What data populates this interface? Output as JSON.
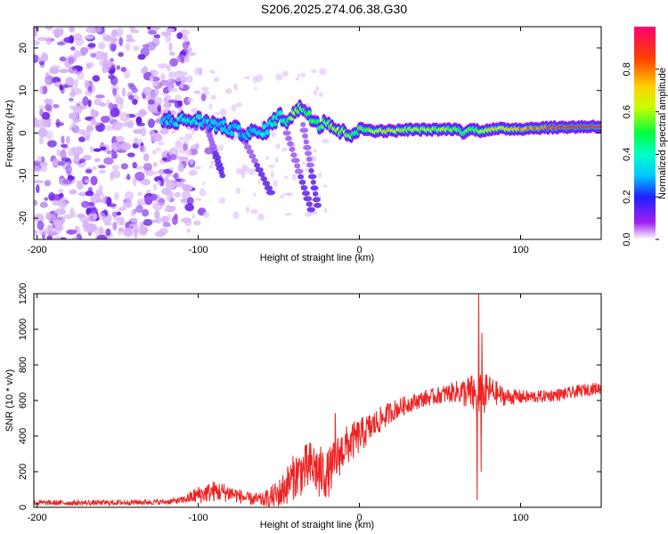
{
  "title": "S206.2025.274.06.38.G30",
  "chart_data": [
    {
      "type": "heatmap",
      "xlabel": "Height of straight line (km)",
      "ylabel": "Frequency (Hz)",
      "xlim": [
        -202,
        150
      ],
      "ylim": [
        -25,
        25
      ],
      "xticks": [
        -200,
        -100,
        0,
        100
      ],
      "yticks": [
        -20,
        -10,
        0,
        10,
        20
      ],
      "colorbar": {
        "label": "Normalized spectral amplitude",
        "range": [
          0,
          1
        ],
        "ticks": [
          "0.0",
          "0.2",
          "0.4",
          "0.6",
          "0.8"
        ],
        "tick_values": [
          0.0,
          0.2,
          0.4,
          0.6,
          0.8
        ]
      },
      "ridge": {
        "x": [
          -120,
          -110,
          -100,
          -90,
          -80,
          -70,
          -60,
          -50,
          -45,
          -40,
          -35,
          -30,
          -25,
          -20,
          -15,
          -10,
          -5,
          0,
          10,
          20,
          30,
          40,
          50,
          60,
          65,
          70,
          75,
          80,
          90,
          100,
          110,
          120,
          130,
          140,
          150
        ],
        "frequency": [
          3,
          3,
          3,
          2,
          1,
          0,
          0,
          4,
          3,
          5,
          6,
          4,
          2,
          3,
          1,
          0,
          0,
          1,
          0.5,
          0.5,
          0.8,
          0.8,
          0.8,
          1,
          0,
          1,
          0.5,
          0.8,
          1,
          1,
          1.2,
          1.3,
          1.4,
          1.5,
          1.6
        ],
        "amplitude": [
          0.3,
          0.35,
          0.35,
          0.3,
          0.3,
          0.3,
          0.35,
          0.45,
          0.5,
          0.6,
          0.55,
          0.5,
          0.55,
          0.6,
          0.65,
          0.6,
          0.55,
          0.5,
          0.65,
          0.7,
          0.6,
          0.6,
          0.6,
          0.55,
          0.5,
          0.55,
          0.6,
          0.65,
          0.7,
          0.75,
          0.8,
          0.85,
          0.9,
          0.9,
          0.9
        ]
      }
    },
    {
      "type": "line",
      "xlabel": "Height of straight line (km)",
      "ylabel": "SNR (10 * v/v)",
      "xlim": [
        -202,
        150
      ],
      "ylim": [
        0,
        1200
      ],
      "xticks": [
        -200,
        -100,
        0,
        100
      ],
      "yticks": [
        0,
        200,
        400,
        600,
        800,
        1000,
        1200
      ],
      "series": [
        {
          "name": "SNR",
          "color": "#ee2222",
          "x": [
            -202,
            -180,
            -160,
            -140,
            -120,
            -110,
            -100,
            -90,
            -80,
            -70,
            -60,
            -50,
            -40,
            -30,
            -20,
            -10,
            0,
            10,
            20,
            30,
            40,
            50,
            60,
            70,
            75,
            80,
            90,
            100,
            110,
            120,
            130,
            140,
            150
          ],
          "mean": [
            25,
            25,
            25,
            28,
            30,
            40,
            70,
            90,
            80,
            50,
            40,
            70,
            180,
            230,
            180,
            330,
            400,
            470,
            540,
            580,
            610,
            630,
            650,
            640,
            600,
            660,
            620,
            620,
            620,
            630,
            640,
            660,
            670
          ],
          "amplitude": [
            15,
            15,
            15,
            15,
            15,
            20,
            50,
            60,
            50,
            35,
            40,
            90,
            130,
            150,
            140,
            120,
            100,
            80,
            60,
            50,
            45,
            50,
            60,
            110,
            150,
            90,
            50,
            40,
            35,
            35,
            35,
            35,
            35
          ]
        }
      ],
      "spikes": [
        {
          "x": 74,
          "y": 1200
        },
        {
          "x": 73,
          "y": 40
        },
        {
          "x": 76,
          "y": 980
        },
        {
          "x": 75.5,
          "y": 200
        },
        {
          "x": -25,
          "y": 60
        },
        {
          "x": -15,
          "y": 530
        }
      ]
    }
  ]
}
